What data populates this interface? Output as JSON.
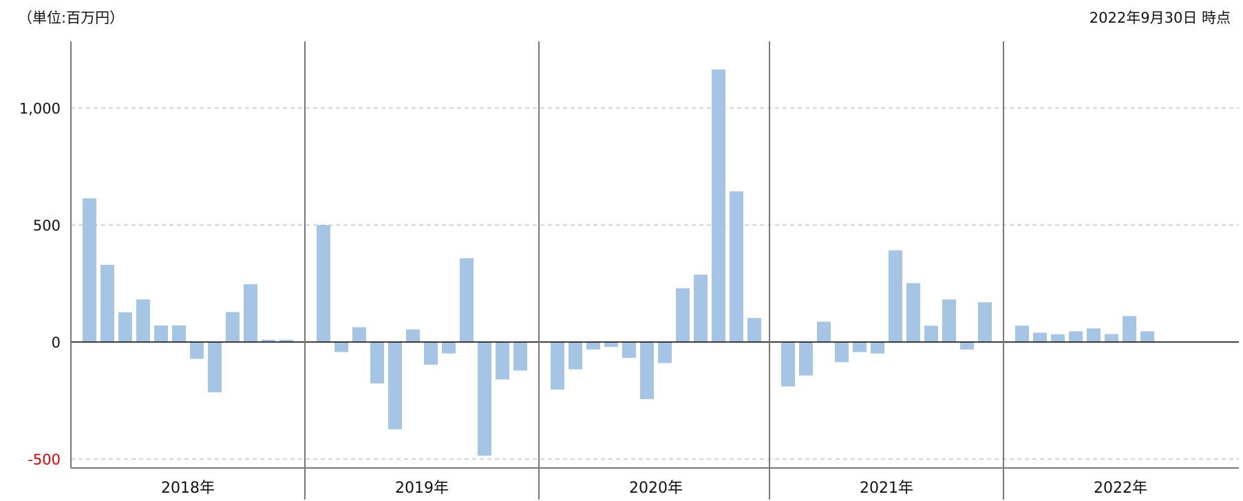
{
  "header": {
    "unit_label": "（単位:百万円）",
    "as_of_label": "2022年9月30日 時点"
  },
  "colors": {
    "bar": "#a6c4e3",
    "negative_tick": "#e00000",
    "axis": "#777777",
    "zero_line": "#000000",
    "grid": "#bbbbbb"
  },
  "chart_data": {
    "type": "bar",
    "ylim": [
      -500,
      1250
    ],
    "yticks": [
      {
        "value": 1000,
        "label": "1,000"
      },
      {
        "value": 500,
        "label": "500"
      },
      {
        "value": 0,
        "label": "0"
      },
      {
        "value": -500,
        "label": "-500"
      }
    ],
    "grid": "dashed horizontal at ±500 and 1000",
    "groups": [
      {
        "label": "2018年",
        "values": [
          614,
          330,
          127,
          182,
          71,
          71,
          -72,
          -215,
          128,
          247,
          10,
          10
        ]
      },
      {
        "label": "2019年",
        "values": [
          500,
          -43,
          63,
          -177,
          -373,
          54,
          -97,
          -49,
          358,
          -486,
          -160,
          -122
        ]
      },
      {
        "label": "2020年",
        "values": [
          -203,
          -117,
          -32,
          -21,
          -68,
          -244,
          -90,
          230,
          288,
          1165,
          644,
          103
        ]
      },
      {
        "label": "2021年",
        "values": [
          -190,
          -143,
          87,
          -86,
          -43,
          -49,
          392,
          252,
          70,
          182,
          -32,
          170
        ]
      },
      {
        "label": "2022年",
        "values": [
          70,
          40,
          33,
          46,
          58,
          34,
          111,
          46
        ]
      }
    ]
  }
}
